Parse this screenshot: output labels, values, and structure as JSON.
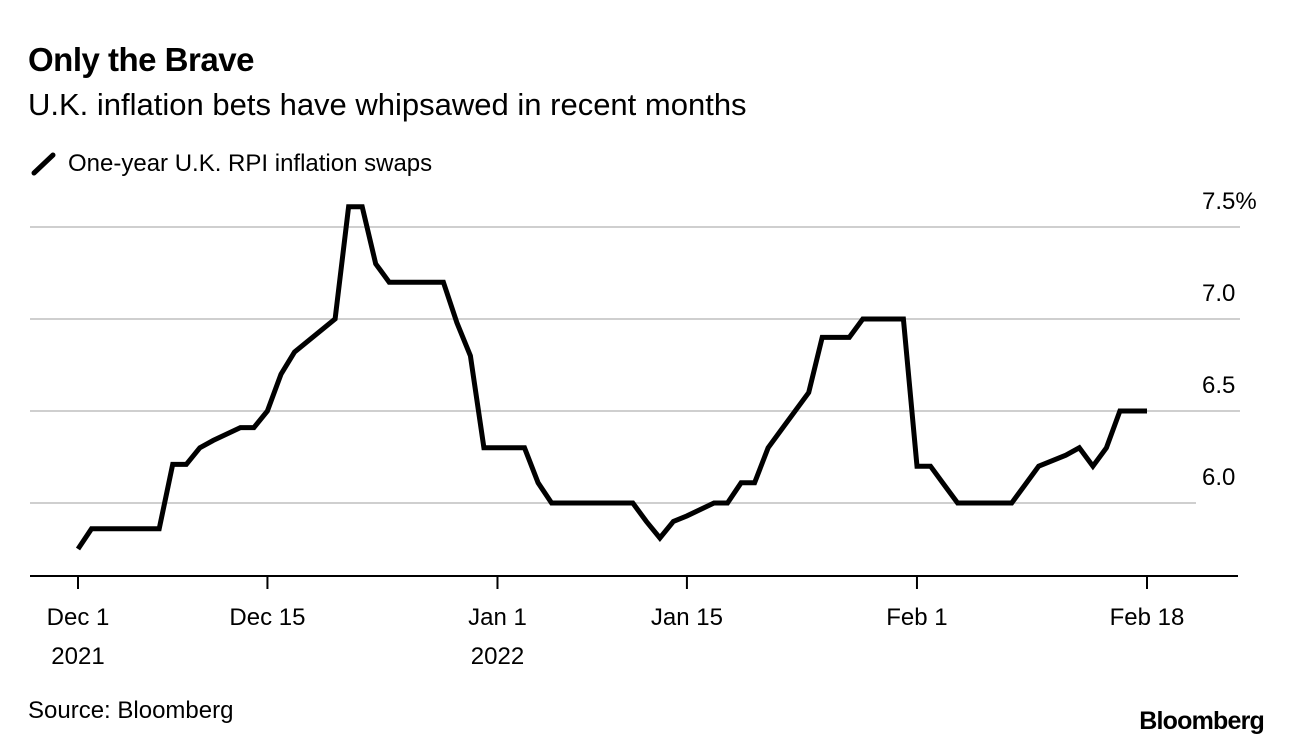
{
  "header": {
    "title": "Only the Brave",
    "subtitle": "U.K. inflation bets have whipsawed in recent months"
  },
  "footer": {
    "source": "Source: Bloomberg",
    "brand": "Bloomberg"
  },
  "colors": {
    "line": "#000000",
    "grid": "#cfcfcf",
    "axis": "#000000",
    "text": "#000000"
  },
  "chart_data": {
    "type": "line",
    "title": "Only the Brave",
    "subtitle": "U.K. inflation bets have whipsawed in recent months",
    "xlabel": "",
    "ylabel": "",
    "legend_position": "top-left",
    "grid": true,
    "ylim": [
      5.6,
      7.7
    ],
    "y_ticks": [
      {
        "value": 6.0,
        "label": "6.0"
      },
      {
        "value": 6.5,
        "label": "6.5"
      },
      {
        "value": 7.0,
        "label": "7.0"
      },
      {
        "value": 7.5,
        "label": "7.5%"
      }
    ],
    "x_range_days": [
      0,
      80
    ],
    "x_ticks": [
      {
        "day": 0,
        "label": "Dec 1",
        "sublabel": "2021"
      },
      {
        "day": 14,
        "label": "Dec 15",
        "sublabel": ""
      },
      {
        "day": 31,
        "label": "Jan 1",
        "sublabel": "2022"
      },
      {
        "day": 45,
        "label": "Jan 15",
        "sublabel": ""
      },
      {
        "day": 62,
        "label": "Feb 1",
        "sublabel": ""
      },
      {
        "day": 79,
        "label": "Feb 18",
        "sublabel": ""
      }
    ],
    "series": [
      {
        "name": "One-year U.K. RPI inflation swaps",
        "x": [
          0,
          1,
          2,
          3,
          6,
          7,
          8,
          9,
          10,
          12,
          13,
          14,
          15,
          16,
          19,
          20,
          21,
          22,
          23,
          24,
          27,
          28,
          29,
          30,
          31,
          32,
          33,
          34,
          35,
          38,
          41,
          42,
          43,
          44,
          45,
          47,
          48,
          49,
          50,
          51,
          52,
          54,
          55,
          56,
          57,
          58,
          61,
          62,
          63,
          64,
          65,
          68,
          69,
          70,
          71,
          73,
          74,
          75,
          76,
          77,
          78,
          79
        ],
        "values": [
          5.75,
          5.86,
          5.86,
          5.86,
          5.86,
          6.21,
          6.21,
          6.3,
          6.34,
          6.41,
          6.41,
          6.5,
          6.7,
          6.82,
          7.0,
          7.61,
          7.61,
          7.3,
          7.2,
          7.2,
          7.2,
          6.98,
          6.8,
          6.3,
          6.3,
          6.3,
          6.3,
          6.11,
          6.0,
          6.0,
          6.0,
          5.9,
          5.81,
          5.9,
          5.93,
          6.0,
          6.0,
          6.11,
          6.11,
          6.3,
          6.4,
          6.6,
          6.9,
          6.9,
          6.9,
          7.0,
          7.0,
          6.2,
          6.2,
          6.1,
          6.0,
          6.0,
          6.0,
          6.1,
          6.2,
          6.26,
          6.3,
          6.2,
          6.3,
          6.5,
          6.5,
          6.5
        ]
      }
    ]
  }
}
